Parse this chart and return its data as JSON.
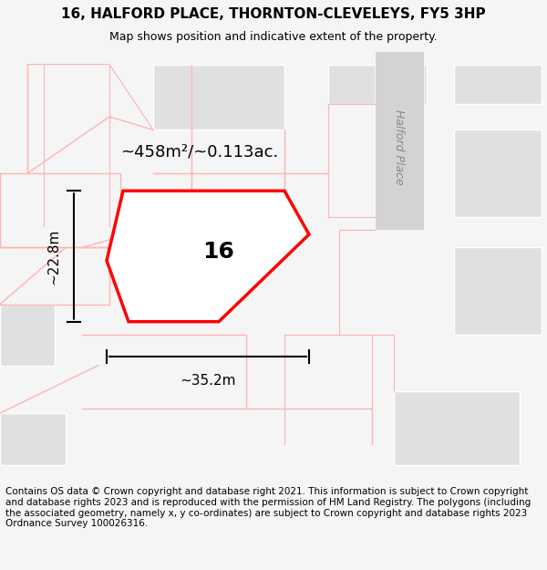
{
  "title_line1": "16, HALFORD PLACE, THORNTON-CLEVELEYS, FY5 3HP",
  "title_line2": "Map shows position and indicative extent of the property.",
  "footer_text": "Contains OS data © Crown copyright and database right 2021. This information is subject to Crown copyright and database rights 2023 and is reproduced with the permission of HM Land Registry. The polygons (including the associated geometry, namely x, y co-ordinates) are subject to Crown copyright and database rights 2023 Ordnance Survey 100026316.",
  "area_label": "~458m²/~0.113ac.",
  "number_label": "16",
  "width_label": "~35.2m",
  "height_label": "~22.8m",
  "bg_color": "#f5f5f5",
  "map_bg": "#ffffff",
  "road_color": "#d3d3d3",
  "building_color": "#e0e0e0",
  "plot_outline_color": "#ff0000",
  "plot_fill_color": "#ffffff",
  "faint_outline_color": "#ffb3b3",
  "title_fontsize": 11,
  "subtitle_fontsize": 9,
  "footer_fontsize": 7.5,
  "label_fontsize": 13,
  "number_fontsize": 18,
  "dim_fontsize": 11
}
